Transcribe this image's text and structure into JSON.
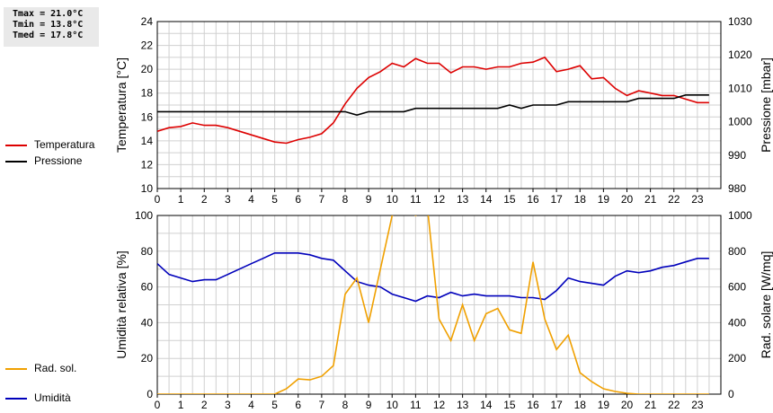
{
  "stats": {
    "tmax": "Tmax = 21.0°C",
    "tmin": "Tmin = 13.8°C",
    "tmed": "Tmed = 17.8°C"
  },
  "colors": {
    "temperature": "#dd0000",
    "pressure": "#000000",
    "humidity": "#0000bb",
    "radiation": "#f0a000",
    "grid": "#d0d0d0"
  },
  "legend_top": [
    {
      "label": "Temperatura",
      "color": "#dd0000"
    },
    {
      "label": "Pressione",
      "color": "#000000"
    }
  ],
  "legend_bottom": [
    {
      "label": "Umidità",
      "color": "#0000bb"
    },
    {
      "label": "Rad. sol.",
      "color": "#f0a000"
    }
  ],
  "chart_data": [
    {
      "type": "line",
      "xlabel": "",
      "xlim": [
        0,
        24
      ],
      "xticks": [
        "0",
        "1",
        "2",
        "3",
        "4",
        "5",
        "6",
        "7",
        "8",
        "9",
        "10",
        "11",
        "12",
        "13",
        "14",
        "15",
        "16",
        "17",
        "18",
        "19",
        "20",
        "21",
        "22",
        "23"
      ],
      "ylabel_left": "Temperatura [°C]",
      "ylim_left": [
        10,
        24
      ],
      "yticks_left": [
        "10",
        "12",
        "14",
        "16",
        "18",
        "20",
        "22",
        "24"
      ],
      "ylabel_right": "Pressione [mbar]",
      "ylim_right": [
        980,
        1030
      ],
      "yticks_right": [
        "980",
        "990",
        "1000",
        "1010",
        "1020",
        "1030"
      ],
      "grid": true,
      "series": [
        {
          "name": "Temperatura",
          "axis": "left",
          "x": [
            0,
            0.5,
            1,
            1.5,
            2,
            2.5,
            3,
            3.5,
            4,
            4.5,
            5,
            5.5,
            6,
            6.5,
            7,
            7.5,
            8,
            8.5,
            9,
            9.5,
            10,
            10.5,
            11,
            11.5,
            12,
            12.5,
            13,
            13.5,
            14,
            14.5,
            15,
            15.5,
            16,
            16.5,
            17,
            17.5,
            18,
            18.5,
            19,
            19.5,
            20,
            20.5,
            21,
            21.5,
            22,
            22.5,
            23,
            23.5
          ],
          "values": [
            14.8,
            15.1,
            15.2,
            15.5,
            15.3,
            15.3,
            15.1,
            14.8,
            14.5,
            14.2,
            13.9,
            13.8,
            14.1,
            14.3,
            14.6,
            15.5,
            17.1,
            18.4,
            19.3,
            19.8,
            20.5,
            20.2,
            20.9,
            20.5,
            20.5,
            19.7,
            20.2,
            20.2,
            20.0,
            20.2,
            20.2,
            20.5,
            20.6,
            21.0,
            19.8,
            20.0,
            20.3,
            19.2,
            19.3,
            18.4,
            17.8,
            18.2,
            18.0,
            17.8,
            17.8,
            17.5,
            17.2,
            17.2
          ]
        },
        {
          "name": "Pressione",
          "axis": "right",
          "x": [
            0,
            0.5,
            1,
            1.5,
            2,
            2.5,
            3,
            3.5,
            4,
            4.5,
            5,
            5.5,
            6,
            6.5,
            7,
            7.5,
            8,
            8.5,
            9,
            9.5,
            10,
            10.5,
            11,
            11.5,
            12,
            12.5,
            13,
            13.5,
            14,
            14.5,
            15,
            15.5,
            16,
            16.5,
            17,
            17.5,
            18,
            18.5,
            19,
            19.5,
            20,
            20.5,
            21,
            21.5,
            22,
            22.5,
            23,
            23.5
          ],
          "values": [
            1003,
            1003,
            1003,
            1003,
            1003,
            1003,
            1003,
            1003,
            1003,
            1003,
            1003,
            1003,
            1003,
            1003,
            1003,
            1003,
            1003,
            1002,
            1003,
            1003,
            1003,
            1003,
            1004,
            1004,
            1004,
            1004,
            1004,
            1004,
            1004,
            1004,
            1005,
            1004,
            1005,
            1005,
            1005,
            1006,
            1006,
            1006,
            1006,
            1006,
            1006,
            1007,
            1007,
            1007,
            1007,
            1008,
            1008,
            1008
          ]
        }
      ]
    },
    {
      "type": "line",
      "xlabel": "",
      "xlim": [
        0,
        24
      ],
      "xticks": [
        "0",
        "1",
        "2",
        "3",
        "4",
        "5",
        "6",
        "7",
        "8",
        "9",
        "10",
        "11",
        "12",
        "13",
        "14",
        "15",
        "16",
        "17",
        "18",
        "19",
        "20",
        "21",
        "22",
        "23"
      ],
      "ylabel_left": "Umidità relativa [%]",
      "ylim_left": [
        0,
        100
      ],
      "yticks_left": [
        "0",
        "20",
        "40",
        "60",
        "80",
        "100"
      ],
      "ylabel_right": "Rad. solare [W/mq]",
      "ylim_right": [
        0,
        1000
      ],
      "yticks_right": [
        "0",
        "200",
        "400",
        "600",
        "800",
        "1000"
      ],
      "grid": true,
      "series": [
        {
          "name": "Umidità",
          "axis": "left",
          "x": [
            0,
            0.5,
            1,
            1.5,
            2,
            2.5,
            3,
            3.5,
            4,
            4.5,
            5,
            5.5,
            6,
            6.5,
            7,
            7.5,
            8,
            8.5,
            9,
            9.5,
            10,
            10.5,
            11,
            11.5,
            12,
            12.5,
            13,
            13.5,
            14,
            14.5,
            15,
            15.5,
            16,
            16.5,
            17,
            17.5,
            18,
            18.5,
            19,
            19.5,
            20,
            20.5,
            21,
            21.5,
            22,
            22.5,
            23,
            23.5
          ],
          "values": [
            73,
            67,
            65,
            63,
            64,
            64,
            67,
            70,
            73,
            76,
            79,
            79,
            79,
            78,
            76,
            75,
            69,
            63,
            61,
            60,
            56,
            54,
            52,
            55,
            54,
            57,
            55,
            56,
            55,
            55,
            55,
            54,
            54,
            53,
            58,
            65,
            63,
            62,
            61,
            66,
            69,
            68,
            69,
            71,
            72,
            74,
            76,
            76
          ]
        },
        {
          "name": "Rad. sol.",
          "axis": "right",
          "x": [
            0,
            0.5,
            1,
            1.5,
            2,
            2.5,
            3,
            3.5,
            4,
            4.5,
            5,
            5.5,
            6,
            6.5,
            7,
            7.5,
            8,
            8.5,
            9,
            9.5,
            10,
            10.5,
            11,
            11.5,
            12,
            12.5,
            13,
            13.5,
            14,
            14.5,
            15,
            15.5,
            16,
            16.5,
            17,
            17.5,
            18,
            18.5,
            19,
            19.5,
            20,
            20.5,
            21,
            21.5,
            22,
            22.5,
            23,
            23.5
          ],
          "values": [
            0,
            0,
            0,
            0,
            0,
            0,
            0,
            0,
            0,
            0,
            0,
            30,
            85,
            80,
            100,
            160,
            560,
            650,
            400,
            700,
            1000,
            1050,
            1000,
            1050,
            420,
            300,
            500,
            300,
            450,
            480,
            360,
            340,
            740,
            420,
            250,
            330,
            120,
            70,
            30,
            15,
            5,
            0,
            0,
            0,
            0,
            0,
            0,
            0
          ]
        }
      ]
    }
  ]
}
